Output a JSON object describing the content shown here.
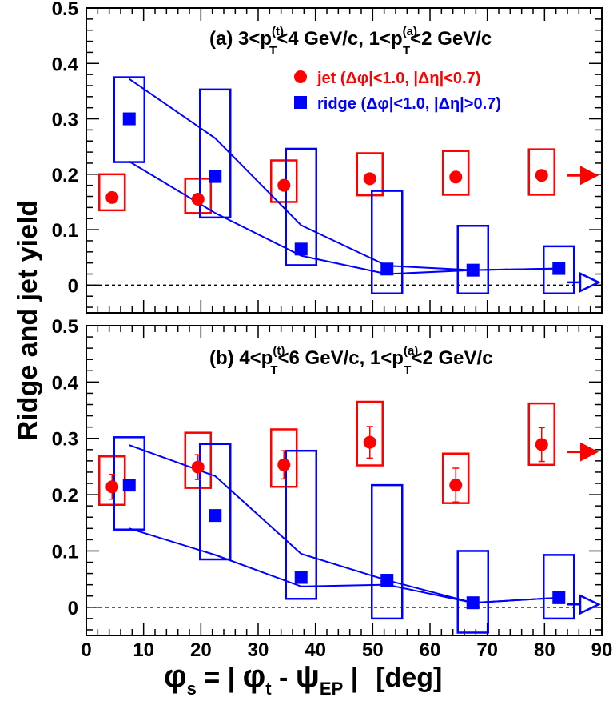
{
  "chart_data": {
    "type": "scatter",
    "y_axis_label": "Ridge and jet yield",
    "x_axis_label": {
      "phi_s": "φ",
      "s_sub": "s",
      "eq": " = | ",
      "phi_t": "φ",
      "t_sub": "t",
      "minus": " - ",
      "psi": "ψ",
      "ep_sub": "EP",
      "bar": " |",
      "unit": "[deg]"
    },
    "xlim": [
      0,
      90
    ],
    "ylim": [
      -0.05,
      0.5
    ],
    "x_ticks": [
      "0",
      "10",
      "20",
      "30",
      "40",
      "50",
      "60",
      "70",
      "80",
      "90"
    ],
    "y_ticks": [
      "0",
      "0.1",
      "0.2",
      "0.3",
      "0.4",
      "0.5"
    ],
    "legend": {
      "jet": "jet (Δφ|<1.0, |Δη|<0.7)",
      "ridge": "ridge (Δφ|<1.0, |Δη|>0.7)"
    },
    "colors": {
      "jet": "#ff0000",
      "ridge": "#0000ff"
    },
    "panels": [
      {
        "label": "(a)",
        "title": {
          "a": "(a) 3<p",
          "sup1": "(t)",
          "sub1": "T",
          "b": "<4 GeV/c, 1<p",
          "sup2": "(a)",
          "sub2": "T",
          "c": "<2 GeV/c"
        },
        "jet": {
          "x": [
            4.5,
            19.5,
            34.5,
            49.5,
            64.5,
            79.5
          ],
          "y": [
            0.158,
            0.155,
            0.18,
            0.192,
            0.195,
            0.198
          ],
          "err": [
            0.0,
            0.0,
            0.0,
            0.0,
            0.0,
            0.0
          ],
          "sys_low": [
            0.135,
            0.13,
            0.15,
            0.162,
            0.163,
            0.163
          ],
          "sys_high": [
            0.2,
            0.192,
            0.225,
            0.238,
            0.242,
            0.245
          ]
        },
        "ridge": {
          "x": [
            7.5,
            22.5,
            37.5,
            52.5,
            67.5,
            82.5
          ],
          "y": [
            0.3,
            0.196,
            0.065,
            0.029,
            0.027,
            0.03
          ],
          "sys_low": [
            0.222,
            0.122,
            0.036,
            -0.015,
            -0.015,
            -0.015
          ],
          "sys_high": [
            0.375,
            0.353,
            0.246,
            0.17,
            0.107,
            0.07
          ]
        },
        "band_upper": {
          "x": [
            7.5,
            22.5,
            37.5,
            52.5,
            67.5,
            82.5
          ],
          "y": [
            0.372,
            0.265,
            0.108,
            0.035,
            0.027,
            0.03
          ]
        },
        "band_lower": {
          "x": [
            7.5,
            22.5,
            37.5,
            52.5,
            67.5,
            82.5
          ],
          "y": [
            0.223,
            0.13,
            0.053,
            0.02,
            0.027,
            0.03
          ]
        },
        "jet_arrow_y": 0.198,
        "ridge_arrow_y": 0.005
      },
      {
        "label": "(b)",
        "title": {
          "a": "(b) 4<p",
          "sup1": "(t)",
          "sub1": "T",
          "b": "<6 GeV/c, 1<p",
          "sup2": "(a)",
          "sub2": "T",
          "c": "<2 GeV/c"
        },
        "jet": {
          "x": [
            4.5,
            19.5,
            34.5,
            49.5,
            64.5,
            79.5
          ],
          "y": [
            0.214,
            0.249,
            0.253,
            0.293,
            0.217,
            0.289
          ],
          "err": [
            0.022,
            0.022,
            0.025,
            0.028,
            0.03,
            0.03
          ],
          "sys_low": [
            0.182,
            0.212,
            0.214,
            0.252,
            0.185,
            0.253
          ],
          "sys_high": [
            0.268,
            0.31,
            0.316,
            0.365,
            0.273,
            0.362
          ]
        },
        "ridge": {
          "x": [
            7.5,
            22.5,
            37.5,
            52.5,
            67.5,
            82.5
          ],
          "y": [
            0.217,
            0.163,
            0.053,
            0.048,
            0.008,
            0.017
          ],
          "sys_low": [
            0.138,
            0.085,
            0.015,
            -0.02,
            -0.045,
            -0.02
          ],
          "sys_high": [
            0.302,
            0.29,
            0.278,
            0.217,
            0.1,
            0.093
          ]
        },
        "band_upper": {
          "x": [
            7.5,
            22.5,
            37.5,
            52.5,
            67.5,
            82.5
          ],
          "y": [
            0.288,
            0.233,
            0.095,
            0.048,
            0.008,
            0.017
          ]
        },
        "band_lower": {
          "x": [
            7.5,
            22.5,
            37.5,
            52.5,
            67.5,
            82.5
          ],
          "y": [
            0.14,
            0.093,
            0.037,
            0.04,
            0.008,
            0.017
          ]
        },
        "jet_arrow_y": 0.276,
        "ridge_arrow_y": 0.005
      }
    ]
  }
}
